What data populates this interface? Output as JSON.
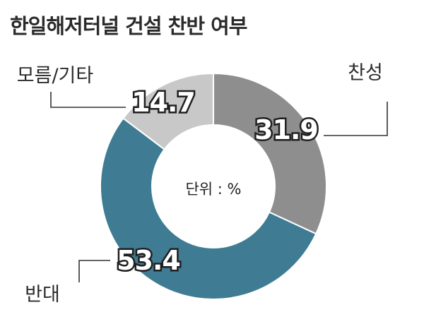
{
  "title": "한일해저터널 건설 찬반 여부",
  "chart_data": {
    "type": "pie",
    "title": "한일해저터널 건설 찬반 여부",
    "unit_label": "단위 : %",
    "slices": [
      {
        "label": "찬성",
        "value": 31.9,
        "value_text": "31.9",
        "color": "#8e8e8e"
      },
      {
        "label": "반대",
        "value": 53.4,
        "value_text": "53.4",
        "color": "#3f7c93"
      },
      {
        "label": "모름/기타",
        "value": 14.7,
        "value_text": "14.7",
        "color": "#c8c8c8"
      }
    ]
  }
}
